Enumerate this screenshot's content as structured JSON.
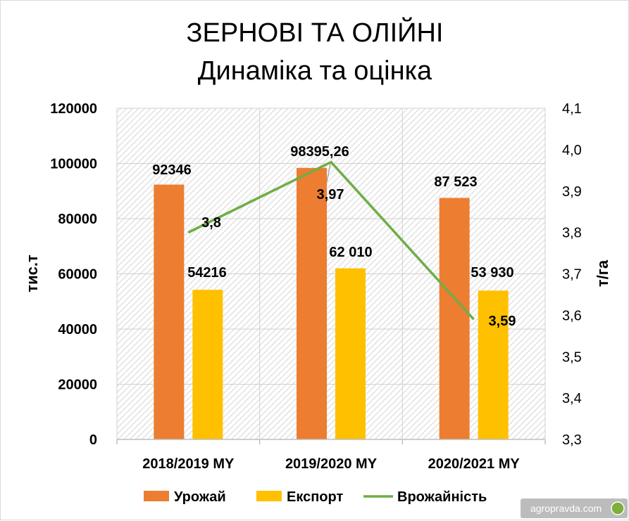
{
  "chart_data": {
    "type": "bar",
    "title": "ЗЕРНОВІ ТА ОЛІЙНІ",
    "subtitle": "Динаміка та оцінка",
    "categories": [
      "2018/2019 MY",
      "2019/2020 MY",
      "2020/2021 MY"
    ],
    "series": [
      {
        "name": "Урожай",
        "type": "bar",
        "axis": "left",
        "color": "#ED7D31",
        "values": [
          92346,
          98395.26,
          87523
        ],
        "labels": [
          "92346",
          "98395,26",
          "87 523"
        ]
      },
      {
        "name": "Експорт",
        "type": "bar",
        "axis": "left",
        "color": "#FFC000",
        "values": [
          54216,
          62010,
          53930
        ],
        "labels": [
          "54216",
          "62 010",
          "53 930"
        ]
      },
      {
        "name": "Врожайність",
        "type": "line",
        "axis": "right",
        "color": "#70AD47",
        "values": [
          3.8,
          3.97,
          3.59
        ],
        "labels": [
          "3,8",
          "3,97",
          "3,59"
        ]
      }
    ],
    "y_left": {
      "label": "тис.т",
      "ylim": [
        0,
        120000
      ],
      "ticks": [
        "0",
        "20000",
        "40000",
        "60000",
        "80000",
        "100000",
        "120000"
      ]
    },
    "y_right": {
      "label": "т/га",
      "ylim": [
        3.3,
        4.1
      ],
      "ticks": [
        "3,3",
        "3,4",
        "3,5",
        "3,6",
        "3,7",
        "3,8",
        "3,9",
        "4,0",
        "4,1"
      ]
    },
    "grid": true,
    "legend": "bottom"
  },
  "watermark": {
    "text": "agropravda.com"
  }
}
